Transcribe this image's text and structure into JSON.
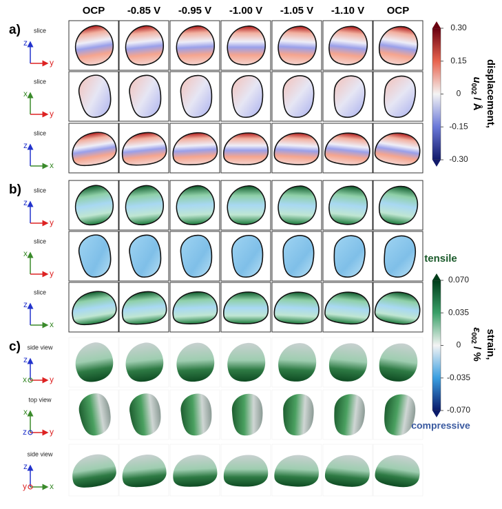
{
  "columns": [
    "OCP",
    "-0.85 V",
    "-0.95 V",
    "-1.00 V",
    "-1.05 V",
    "-1.10 V",
    "OCP"
  ],
  "panels": [
    {
      "label": "a)",
      "rows": [
        {
          "view": "slice",
          "up": "z",
          "right": "y"
        },
        {
          "view": "slice",
          "up": "x",
          "right": "y"
        },
        {
          "view": "slice",
          "up": "z",
          "right": "x"
        }
      ]
    },
    {
      "label": "b)",
      "rows": [
        {
          "view": "slice",
          "up": "z",
          "right": "y"
        },
        {
          "view": "slice",
          "up": "x",
          "right": "y"
        },
        {
          "view": "slice",
          "up": "z",
          "right": "x"
        }
      ]
    },
    {
      "label": "c)",
      "rows": [
        {
          "view": "side view",
          "up": "z",
          "right": "y",
          "out": "x"
        },
        {
          "view": "top view",
          "up": "x",
          "right": "y",
          "out": "z"
        },
        {
          "view": "side view",
          "up": "z",
          "right": "x",
          "out": "y"
        }
      ]
    }
  ],
  "colorbars": [
    {
      "title": "displacement,",
      "symbol": "u",
      "subscript": "002",
      "unit": "/ Å",
      "ticks": [
        {
          "value": 0.3,
          "label": "0.30"
        },
        {
          "value": 0.15,
          "label": "0.15"
        },
        0,
        {
          "value": -0.15,
          "label": "-0.15"
        },
        {
          "value": -0.3,
          "label": "-0.30"
        }
      ]
    },
    {
      "title": "strain,",
      "symbol": "ε",
      "subscript": "002",
      "unit": "/ %",
      "top_label": "tensile",
      "bottom_label": "compressive",
      "ticks": [
        {
          "value": 0.07,
          "label": "0.070"
        },
        {
          "value": 0.035,
          "label": "0.035"
        },
        0,
        {
          "value": -0.035,
          "label": "-0.035"
        },
        {
          "value": -0.07,
          "label": "-0.070"
        }
      ]
    }
  ]
}
